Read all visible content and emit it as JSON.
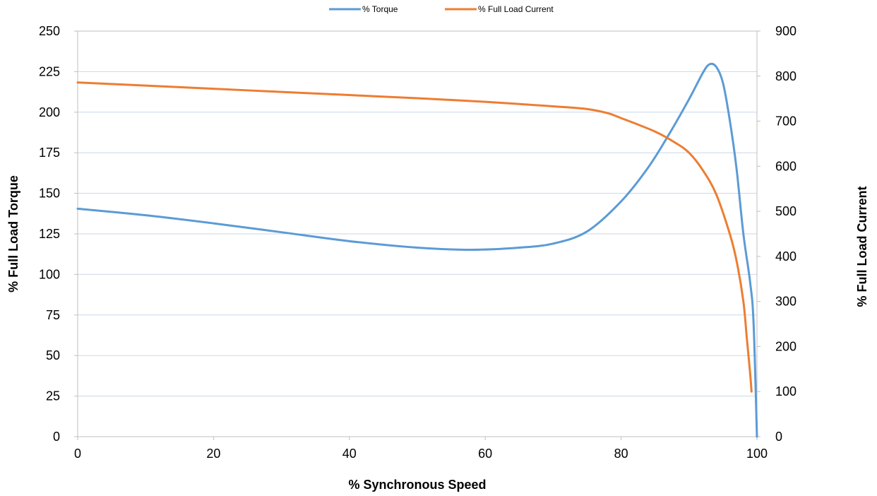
{
  "chart_data": {
    "type": "line",
    "xlabel": "% Synchronous Speed",
    "ylabel_left": "% Full Load Torque",
    "ylabel_right": "% Full Load Current",
    "xlim": [
      0,
      100
    ],
    "ylim_left": [
      0,
      250
    ],
    "ylim_right": [
      0,
      900
    ],
    "x_ticks": [
      0,
      20,
      40,
      60,
      80,
      100
    ],
    "y_left_ticks": [
      0,
      25,
      50,
      75,
      100,
      125,
      150,
      175,
      200,
      225,
      250
    ],
    "y_right_ticks": [
      0,
      100,
      200,
      300,
      400,
      500,
      600,
      700,
      800,
      900
    ],
    "grid": "horizontal",
    "legend_position": "top",
    "series": [
      {
        "name": "% Torque",
        "axis": "left",
        "color": "#5b9bd5",
        "points": [
          [
            0,
            140.5
          ],
          [
            10,
            136.5
          ],
          [
            20,
            131.5
          ],
          [
            30,
            126
          ],
          [
            40,
            120.5
          ],
          [
            50,
            116.5
          ],
          [
            58,
            115.2
          ],
          [
            65,
            116.5
          ],
          [
            70,
            119
          ],
          [
            75,
            126.5
          ],
          [
            80,
            145
          ],
          [
            84,
            166
          ],
          [
            87,
            186
          ],
          [
            90,
            208
          ],
          [
            92,
            224
          ],
          [
            93,
            229.5
          ],
          [
            94,
            228
          ],
          [
            95,
            218
          ],
          [
            96,
            195
          ],
          [
            97,
            165
          ],
          [
            98,
            125
          ],
          [
            99,
            95
          ],
          [
            99.5,
            70
          ],
          [
            100,
            0
          ]
        ]
      },
      {
        "name": "% Full Load Current",
        "axis": "right",
        "color": "#ed7d31",
        "points": [
          [
            0,
            786
          ],
          [
            10,
            779
          ],
          [
            20,
            772
          ],
          [
            30,
            765
          ],
          [
            40,
            758
          ],
          [
            50,
            751
          ],
          [
            60,
            743
          ],
          [
            70,
            733
          ],
          [
            75,
            727
          ],
          [
            78,
            718
          ],
          [
            80,
            707
          ],
          [
            85,
            677
          ],
          [
            88,
            652
          ],
          [
            90,
            630
          ],
          [
            92,
            592
          ],
          [
            94,
            538
          ],
          [
            96,
            450
          ],
          [
            97,
            390
          ],
          [
            98,
            300
          ],
          [
            98.5,
            220
          ],
          [
            99,
            140
          ],
          [
            99.2,
            100
          ]
        ]
      }
    ]
  }
}
